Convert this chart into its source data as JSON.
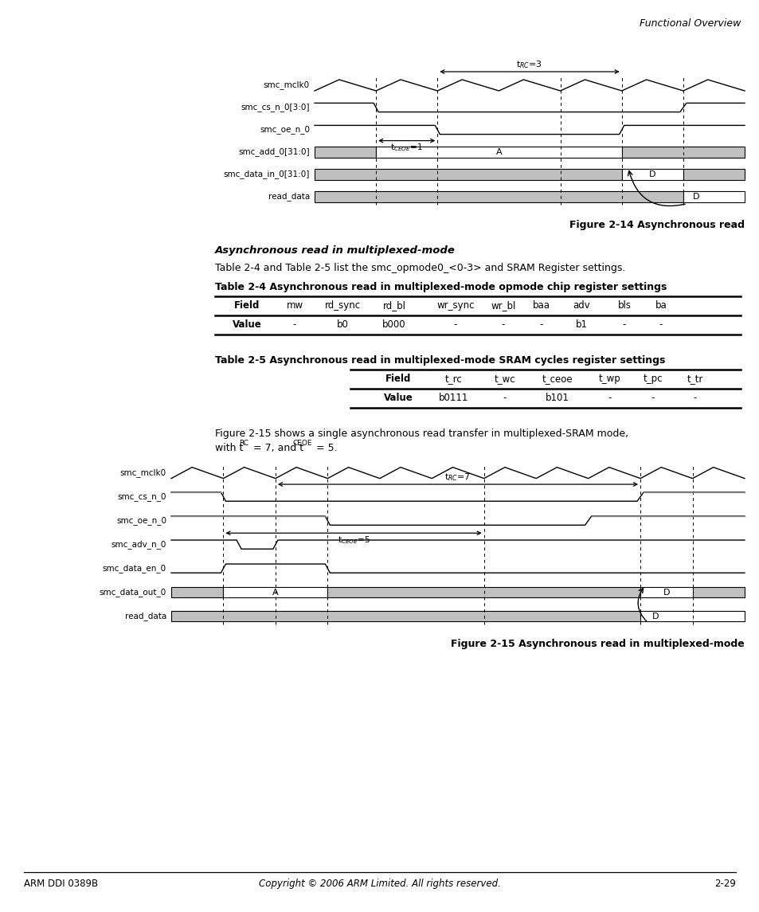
{
  "page_header": "Functional Overview",
  "fig14_caption": "Figure 2-14 Asynchronous read",
  "fig15_caption": "Figure 2-15 Asynchronous read in multiplexed-mode",
  "section_title": "Asynchronous read in multiplexed-mode",
  "section_text": "Table 2-4 and Table 2-5 list the smc_opmode0_<0-3> and SRAM Register settings.",
  "table24_title": "Table 2-4 Asynchronous read in multiplexed-mode opmode chip register settings",
  "table24_headers": [
    "Field",
    "mw",
    "rd_sync",
    "rd_bl",
    "wr_sync",
    "wr_bl",
    "baa",
    "adv",
    "bls",
    "ba"
  ],
  "table24_values": [
    "Value",
    "-",
    "b0",
    "b000",
    "-",
    "-",
    "-",
    "b1",
    "-",
    "-"
  ],
  "table25_title": "Table 2-5 Asynchronous read in multiplexed-mode SRAM cycles register settings",
  "table25_headers": [
    "Field",
    "t_rc",
    "t_wc",
    "t_ceoe",
    "t_wp",
    "t_pc",
    "t_tr"
  ],
  "table25_values": [
    "Value",
    "b0111",
    "-",
    "b101",
    "-",
    "-",
    "-"
  ],
  "fig15_text_line1": "Figure 2-15 shows a single asynchronous read transfer in multiplexed-SRAM mode,",
  "fig15_text_line2": "with t",
  "footer_left": "ARM DDI 0389B",
  "footer_center": "Copyright © 2006 ARM Limited. All rights reserved.",
  "footer_right": "2-29",
  "gray_fill": "#c0c0c0",
  "white": "#ffffff",
  "black": "#000000",
  "bg": "#ffffff"
}
